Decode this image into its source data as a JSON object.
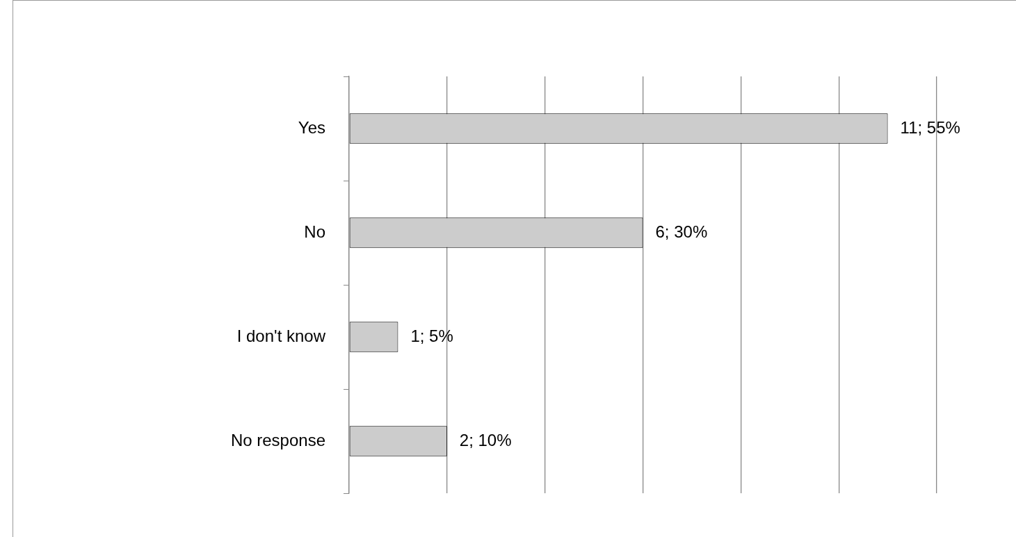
{
  "chart_data": {
    "type": "bar",
    "orientation": "horizontal",
    "categories": [
      "Yes",
      "No",
      "I don't know",
      "No response"
    ],
    "values": [
      11,
      6,
      1,
      2
    ],
    "value_labels": [
      "11; 55%",
      "6; 30%",
      "1; 5%",
      "2; 10%"
    ],
    "color": "#cccccc",
    "tick_labels": "y",
    "grid": "x",
    "legend": false
  }
}
